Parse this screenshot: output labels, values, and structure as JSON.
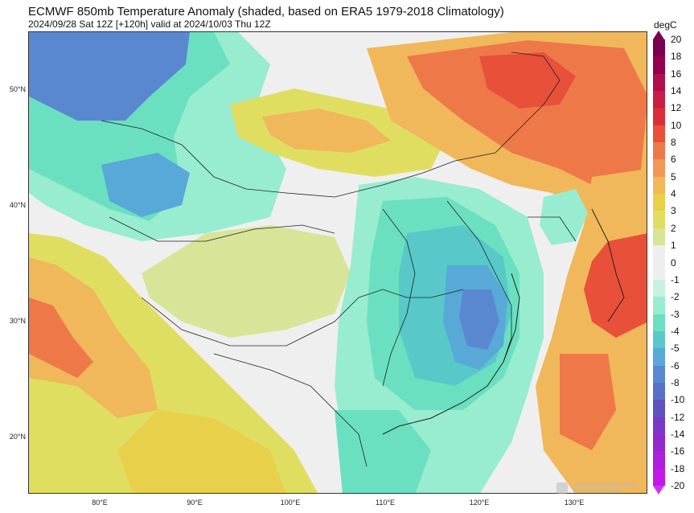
{
  "title": "ECMWF 850mb Temperature Anomaly (shaded, based on ERA5 1979-2018 Climatology)",
  "subtitle": "2024/09/28 Sat 12Z [+120h] valid at 2024/10/03 Thu 12Z",
  "colorbar": {
    "unit": "degC",
    "ticks": [
      "20",
      "18",
      "16",
      "14",
      "12",
      "10",
      "8",
      "6",
      "5",
      "4",
      "3",
      "2",
      "1",
      "0",
      "-1",
      "-2",
      "-3",
      "-4",
      "-5",
      "-6",
      "-8",
      "-10",
      "-12",
      "-14",
      "-16",
      "-18",
      "-20"
    ],
    "colors": [
      "#7a0050",
      "#95004e",
      "#b0104a",
      "#c81e45",
      "#dc2e38",
      "#e8503a",
      "#ee7848",
      "#f19858",
      "#f0b85a",
      "#e8d04a",
      "#e0de60",
      "#d8e498",
      "#eeeeee",
      "#eeeeee",
      "#c8f2e0",
      "#98ecd0",
      "#6ae0c0",
      "#58c8c8",
      "#58a8d8",
      "#5a88d0",
      "#5a70c8",
      "#6050c0",
      "#7a38c8",
      "#9428d0",
      "#ac20dc",
      "#c418e8"
    ]
  },
  "lat_labels": [
    "50°N",
    "40°N",
    "30°N",
    "20°N"
  ],
  "lon_labels": [
    "80°E",
    "90°E",
    "100°E",
    "110°E",
    "120°E",
    "130°E"
  ],
  "fields": {
    "anomaly_colors": {
      "neutral": "#efefef",
      "warm_weak": "#d8e498",
      "warm_2": "#e0de60",
      "warm_3": "#e8d04a",
      "warm_4": "#f0b85a",
      "warm_5": "#f19858",
      "warm_6": "#ee7848",
      "warm_8": "#e8503a",
      "cold_1": "#c8f2e0",
      "cold_2": "#98ecd0",
      "cold_3": "#6ae0c0",
      "cold_4": "#58c8c8",
      "cold_5": "#58a8d8",
      "cold_6": "#5a88d0"
    }
  }
}
